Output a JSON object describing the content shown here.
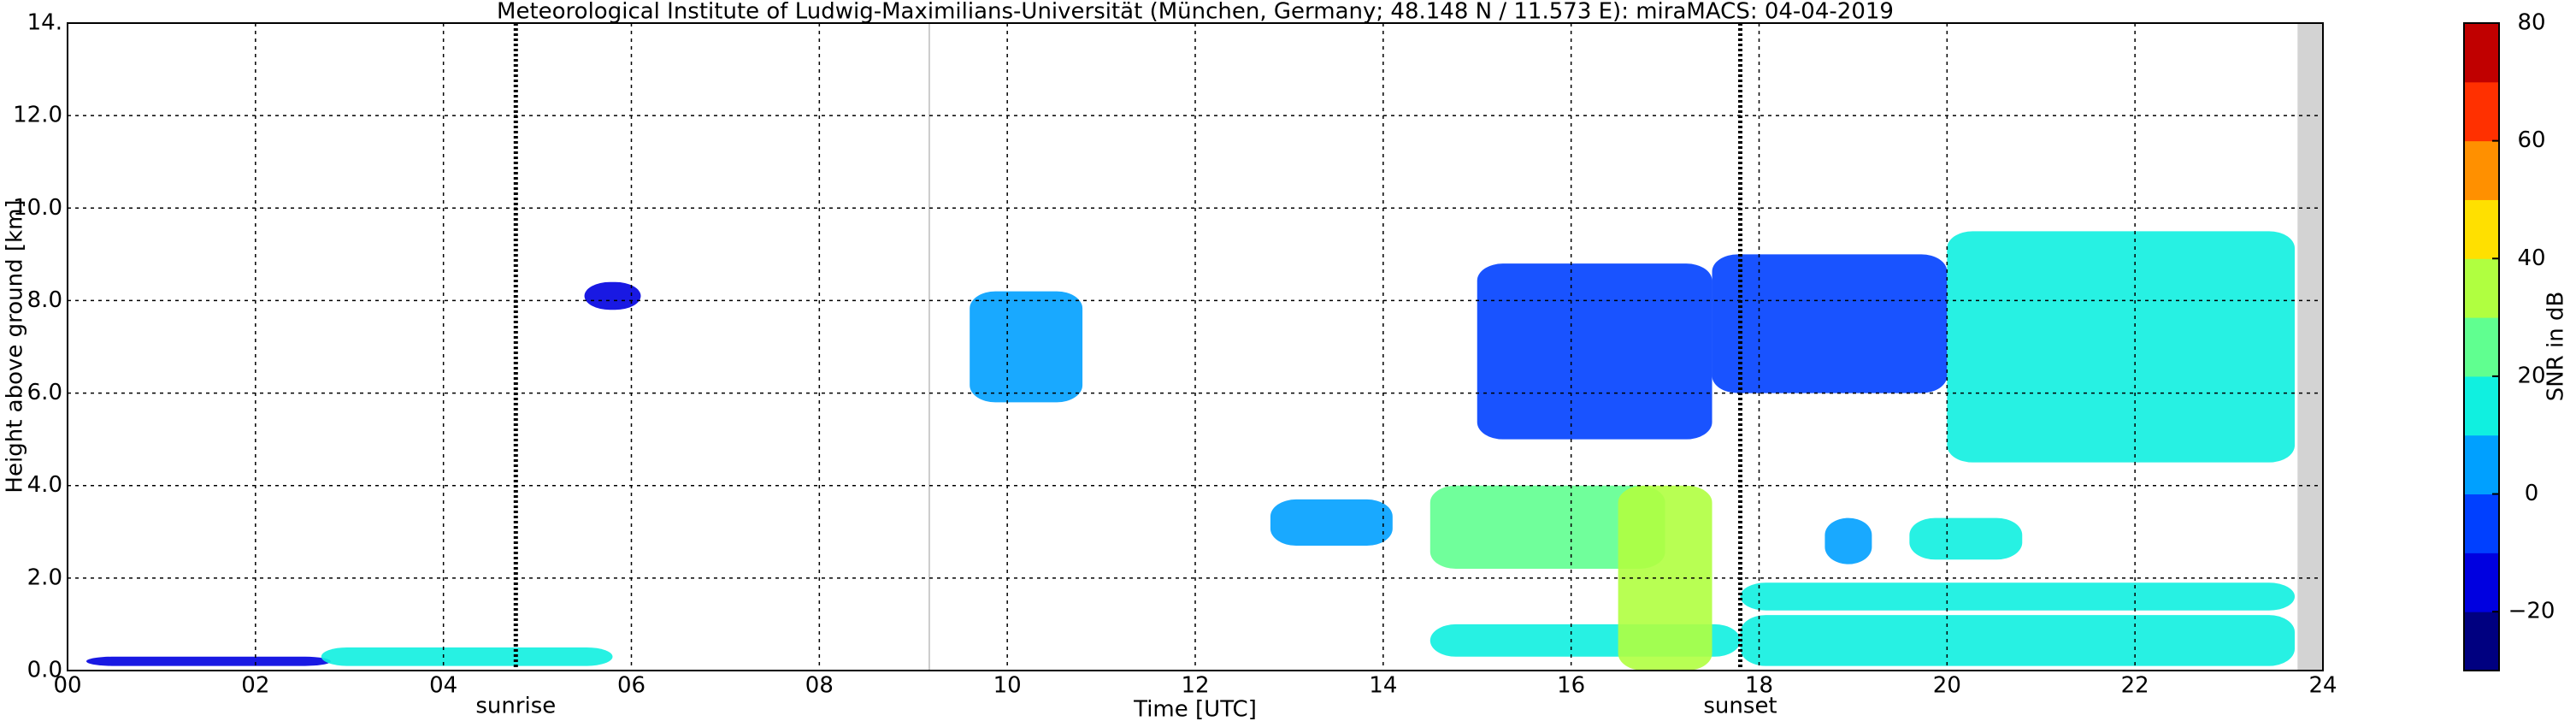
{
  "chart_data": {
    "type": "time-height",
    "title": "Meteorological Institute of Ludwig-Maximilians-Universität (München, Germany; 48.148 N / 11.573 E):    miraMACS: 04-04-2019",
    "xlabel": "Time [UTC]",
    "ylabel": "Height above ground [km]",
    "colorbar_label": "SNR in dB",
    "xlim": [
      0,
      24
    ],
    "xticks": [
      {
        "value": 0,
        "label": "00"
      },
      {
        "value": 2,
        "label": "02"
      },
      {
        "value": 4,
        "label": "04"
      },
      {
        "value": 6,
        "label": "06"
      },
      {
        "value": 8,
        "label": "08"
      },
      {
        "value": 10,
        "label": "10"
      },
      {
        "value": 12,
        "label": "12"
      },
      {
        "value": 14,
        "label": "14"
      },
      {
        "value": 16,
        "label": "16"
      },
      {
        "value": 18,
        "label": "18"
      },
      {
        "value": 20,
        "label": "20"
      },
      {
        "value": 22,
        "label": "22"
      },
      {
        "value": 24,
        "label": "24"
      }
    ],
    "ylim": [
      0,
      14
    ],
    "yticks": [
      {
        "value": 0,
        "label": "0.0"
      },
      {
        "value": 2,
        "label": "2.0"
      },
      {
        "value": 4,
        "label": "4.0"
      },
      {
        "value": 6,
        "label": "6.0"
      },
      {
        "value": 8,
        "label": "8.0"
      },
      {
        "value": 10,
        "label": "10.0"
      },
      {
        "value": 12,
        "label": "12.0"
      },
      {
        "value": 14,
        "label": "14."
      }
    ],
    "grid": true,
    "clim": [
      -30,
      80
    ],
    "cticks": [
      {
        "value": -20,
        "label": "−20"
      },
      0,
      20,
      40,
      60,
      80
    ],
    "colormap": [
      "#000080",
      "#0000e0",
      "#0040ff",
      "#00a0ff",
      "#10f0e0",
      "#60ff90",
      "#b0ff40",
      "#ffe000",
      "#ff9000",
      "#ff3000",
      "#c00000"
    ],
    "events": [
      {
        "name": "sunrise",
        "x": 4.77
      },
      {
        "name": "sunset",
        "x": 17.8
      }
    ],
    "no_data": [
      23.73,
      24
    ],
    "echoes": [
      {
        "x": [
          0.2,
          2.8
        ],
        "height": [
          0.1,
          0.3
        ],
        "snr": -15
      },
      {
        "x": [
          2.7,
          5.8
        ],
        "height": [
          0.1,
          0.5
        ],
        "snr": 15
      },
      {
        "x": [
          5.5,
          6.1
        ],
        "height": [
          7.8,
          8.4
        ],
        "snr": -20
      },
      {
        "x": [
          9.6,
          10.8
        ],
        "height": [
          5.8,
          8.2
        ],
        "snr": 5
      },
      {
        "x": [
          12.8,
          14.1
        ],
        "height": [
          2.7,
          3.7
        ],
        "snr": 5
      },
      {
        "x": [
          14.5,
          17.0
        ],
        "height": [
          2.2,
          4.0
        ],
        "snr": 20
      },
      {
        "x": [
          14.5,
          17.8
        ],
        "height": [
          0.3,
          1.0
        ],
        "snr": 10
      },
      {
        "x": [
          16.5,
          17.5
        ],
        "height": [
          0.0,
          4.0
        ],
        "snr": 30
      },
      {
        "x": [
          17.8,
          23.7
        ],
        "height": [
          0.1,
          1.2
        ],
        "snr": 15
      },
      {
        "x": [
          17.8,
          23.7
        ],
        "height": [
          1.3,
          1.9
        ],
        "snr": 15
      },
      {
        "x": [
          15.0,
          17.5
        ],
        "height": [
          5.0,
          8.8
        ],
        "snr": -5
      },
      {
        "x": [
          17.5,
          20.0
        ],
        "height": [
          6.0,
          9.0
        ],
        "snr": -5
      },
      {
        "x": [
          20.0,
          23.7
        ],
        "height": [
          4.5,
          9.5
        ],
        "snr": 10
      },
      {
        "x": [
          18.7,
          19.2
        ],
        "height": [
          2.3,
          3.3
        ],
        "snr": 5
      },
      {
        "x": [
          19.6,
          20.8
        ],
        "height": [
          2.4,
          3.3
        ],
        "snr": 10
      }
    ]
  }
}
